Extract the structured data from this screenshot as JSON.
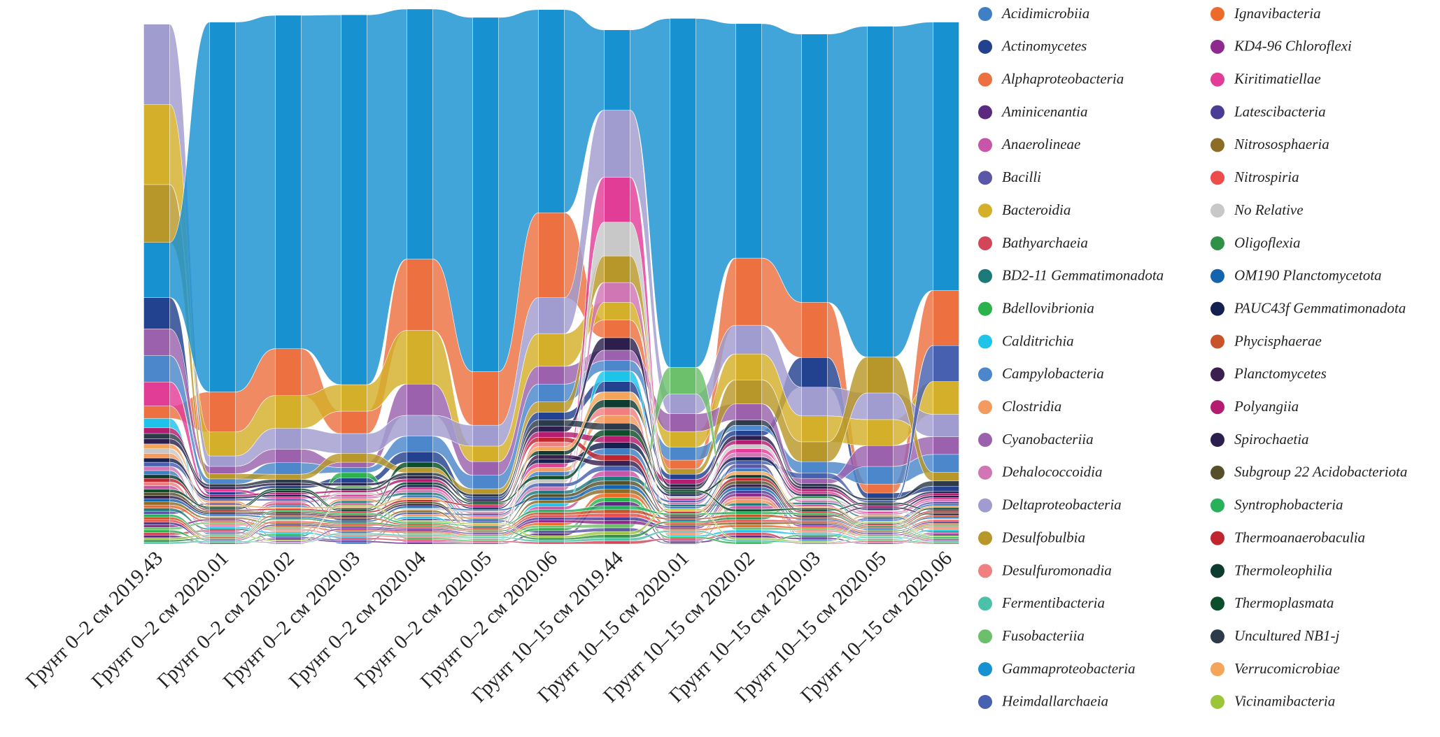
{
  "chart_data": {
    "type": "alluvial",
    "categories": [
      "Грунт 0–2 см 2019.43",
      "Грунт 0–2 см 2020.01",
      "Грунт 0–2 см 2020.02",
      "Грунт 0–2 см 2020.03",
      "Грунт 0–2 см 2020.04",
      "Грунт 0–2 см 2020.05",
      "Грунт 0–2 см 2020.06",
      "Грунт 10–15 см 2019.44",
      "Грунт 10–15 см 2020.01",
      "Грунт 10–15 см 2020.02",
      "Грунт 10–15 см 2020.03",
      "Грунт 10–15 см 2020.05",
      "Грунт 10–15 см 2020.06"
    ],
    "series": [
      {
        "name": "Acidimicrobiia",
        "color": "#3f7fc3",
        "values": [
          0.8,
          0.3,
          0.4,
          0.3,
          0.5,
          0.3,
          0.8,
          1.2,
          0.4,
          0.7,
          0.3,
          0.3,
          0.4
        ]
      },
      {
        "name": "Actinomycetes",
        "color": "#22418f",
        "values": [
          6,
          0.5,
          0.5,
          1,
          2,
          0.5,
          1.5,
          2,
          1,
          1,
          5.7,
          1,
          1
        ]
      },
      {
        "name": "Alphaproteobacteria",
        "color": "#ec7040",
        "values": [
          2.4,
          7.7,
          9,
          4.3,
          13.7,
          10.3,
          16.3,
          3.4,
          1.7,
          12.9,
          10.6,
          1.7,
          10.6
        ]
      },
      {
        "name": "Aminicenantia",
        "color": "#5b2a7e",
        "values": [
          0.5,
          0.2,
          0.3,
          0.3,
          0.3,
          0.2,
          0.5,
          0.8,
          0.3,
          0.5,
          0.3,
          0.2,
          0.3
        ]
      },
      {
        "name": "Anaerolineae",
        "color": "#c855a7",
        "values": [
          0.7,
          0.3,
          0.2,
          0.4,
          0.3,
          0.2,
          0.6,
          1,
          0.3,
          0.6,
          0.4,
          0.2,
          0.3
        ]
      },
      {
        "name": "Bacilli",
        "color": "#5b57a6",
        "values": [
          0.6,
          0.4,
          0.3,
          0.3,
          0.4,
          0.3,
          0.5,
          0.7,
          0.2,
          0.7,
          0.3,
          0.3,
          0.4
        ]
      },
      {
        "name": "Bacteroidia",
        "color": "#d4b02a",
        "values": [
          15.4,
          4.6,
          6.3,
          5.1,
          10.3,
          3,
          6.3,
          3.4,
          3,
          5,
          5,
          5,
          6.3
        ]
      },
      {
        "name": "Bathyarchaeia",
        "color": "#d2465a",
        "values": [
          0.5,
          0.3,
          0.4,
          0.3,
          0.3,
          0.2,
          0.4,
          0.6,
          0.3,
          0.5,
          0.2,
          0.2,
          0.2
        ]
      },
      {
        "name": "BD2-11 Gemmatimonadota",
        "color": "#1d7a7a",
        "values": [
          0.6,
          0.3,
          0.3,
          0.4,
          0.5,
          0.3,
          0.7,
          0.9,
          0.4,
          0.6,
          0.4,
          0.3,
          0.3
        ]
      },
      {
        "name": "Bdellovibrionia",
        "color": "#2bb24c",
        "values": [
          0.5,
          0.2,
          0.3,
          1,
          0.3,
          0.2,
          0.5,
          0.8,
          0.3,
          0.4,
          0.3,
          0.2,
          0.2
        ]
      },
      {
        "name": "Calditrichia",
        "color": "#1ec3ea",
        "values": [
          1.8,
          0.3,
          0.3,
          0.3,
          0.4,
          0.2,
          0.6,
          2,
          0.3,
          0.5,
          0.3,
          0.2,
          0.3
        ]
      },
      {
        "name": "Campylobacteria",
        "color": "#4c86cb",
        "values": [
          5.1,
          1,
          2.2,
          1,
          3,
          2.6,
          3.4,
          2,
          2.5,
          1,
          2.2,
          3.4,
          3.4
        ]
      },
      {
        "name": "Clostridia",
        "color": "#f59a5e",
        "values": [
          0.9,
          0.4,
          0.3,
          0.4,
          0.4,
          0.3,
          0.8,
          1.5,
          0.3,
          0.6,
          0.3,
          0.3,
          0.3
        ]
      },
      {
        "name": "Cyanobacteriia",
        "color": "#9b61ad",
        "values": [
          5.1,
          1.4,
          2.6,
          1,
          6,
          2.6,
          3.4,
          2,
          3.4,
          3.1,
          1,
          4,
          3.4
        ]
      },
      {
        "name": "Dehalococcoidia",
        "color": "#d176b5",
        "values": [
          0.8,
          0.3,
          0.4,
          0.4,
          0.5,
          0.3,
          0.7,
          3.8,
          0.4,
          0.8,
          0.4,
          0.3,
          0.4
        ]
      },
      {
        "name": "Deltaproteobacteria",
        "color": "#a19ccf",
        "values": [
          15.4,
          2,
          4,
          3.8,
          4,
          4,
          6.9,
          12.9,
          3.8,
          5.5,
          5.5,
          5.1,
          4.3
        ]
      },
      {
        "name": "Desulfobulbia",
        "color": "#b8972a",
        "values": [
          11.1,
          1,
          1,
          1.7,
          1,
          1,
          2,
          5.1,
          1,
          4.6,
          3.8,
          6.9,
          1.7
        ]
      },
      {
        "name": "Desulfuromonadia",
        "color": "#f08080",
        "values": [
          0.7,
          0.3,
          0.3,
          0.3,
          0.3,
          0.2,
          0.9,
          1.5,
          0.3,
          0.6,
          0.3,
          0.2,
          0.3
        ]
      },
      {
        "name": "Fermentibacteria",
        "color": "#4dc1a8",
        "values": [
          0.4,
          0.2,
          0.2,
          0.3,
          0.3,
          0.2,
          0.4,
          0.6,
          0.3,
          0.4,
          0.2,
          0.2,
          0.2
        ]
      },
      {
        "name": "Fusobacteriia",
        "color": "#6cbf6b",
        "values": [
          0.5,
          0.3,
          0.3,
          0.5,
          0.3,
          0.2,
          0.5,
          0.7,
          5.1,
          0.5,
          0.3,
          0.2,
          0.3
        ]
      },
      {
        "name": "Gammaproteobacteria",
        "color": "#1891d1",
        "values": [
          10.6,
          71,
          64,
          71,
          48,
          68,
          39,
          15.4,
          67,
          45,
          51.5,
          63.5,
          51.5
        ]
      },
      {
        "name": "Heimdallarchaeia",
        "color": "#4760b0",
        "values": [
          0.8,
          0.4,
          0.4,
          0.3,
          0.4,
          0.3,
          0.7,
          1,
          0.4,
          0.7,
          1,
          0.4,
          6.9
        ]
      },
      {
        "name": "Ignavibacteria",
        "color": "#ec6a2c",
        "values": [
          0.6,
          0.3,
          0.3,
          0.3,
          0.3,
          0.2,
          0.5,
          0.8,
          0.3,
          0.5,
          0.3,
          0.2,
          0.3
        ]
      },
      {
        "name": "KD4-96 Chloroflexi",
        "color": "#8e2a8e",
        "values": [
          0.5,
          0.3,
          0.2,
          0.3,
          0.3,
          0.2,
          0.5,
          0.7,
          0.3,
          0.6,
          0.3,
          0.2,
          0.2
        ]
      },
      {
        "name": "Kiritimatiellae",
        "color": "#e23d96",
        "values": [
          4.6,
          0.5,
          0.4,
          0.4,
          0.5,
          0.3,
          0.8,
          8.6,
          0.4,
          0.8,
          0.5,
          0.3,
          0.4
        ]
      },
      {
        "name": "Latescibacteria",
        "color": "#4a3d96",
        "values": [
          0.5,
          0.2,
          0.3,
          0.3,
          0.3,
          0.2,
          0.5,
          0.7,
          0.3,
          0.6,
          0.3,
          0.2,
          0.3
        ]
      },
      {
        "name": "Nitrososphaeria",
        "color": "#8d6d25",
        "values": [
          0.6,
          0.3,
          0.3,
          0.3,
          0.4,
          0.2,
          0.6,
          0.8,
          0.3,
          0.5,
          0.3,
          0.2,
          0.2
        ]
      },
      {
        "name": "Nitrospiria",
        "color": "#ee4b4b",
        "values": [
          0.5,
          0.2,
          0.3,
          0.3,
          0.3,
          0.2,
          0.5,
          0.7,
          0.3,
          0.5,
          0.3,
          0.2,
          0.3
        ]
      },
      {
        "name": "No Relative",
        "color": "#c8c8c8",
        "values": [
          0.9,
          0.3,
          0.3,
          0.4,
          0.4,
          0.3,
          0.7,
          6.5,
          0.4,
          0.8,
          0.4,
          0.3,
          0.3
        ]
      },
      {
        "name": "Oligoflexia",
        "color": "#2e9145",
        "values": [
          0.4,
          0.2,
          0.3,
          0.3,
          0.3,
          0.2,
          0.4,
          0.6,
          0.3,
          0.5,
          0.4,
          0.2,
          0.2
        ]
      },
      {
        "name": "OM190 Planctomycetota",
        "color": "#1464ad",
        "values": [
          0.6,
          0.3,
          0.3,
          0.3,
          0.4,
          0.3,
          0.6,
          0.8,
          0.3,
          0.6,
          0.3,
          0.2,
          0.3
        ]
      },
      {
        "name": "PAUC43f Gemmatimonadota",
        "color": "#14204f",
        "values": [
          0.8,
          0.4,
          0.4,
          0.3,
          0.5,
          0.3,
          0.8,
          1.2,
          0.4,
          0.7,
          0.4,
          0.3,
          0.4
        ]
      },
      {
        "name": "Phycisphaerae",
        "color": "#c9542a",
        "values": [
          0.5,
          0.2,
          0.3,
          0.3,
          0.3,
          0.2,
          0.5,
          0.7,
          0.3,
          0.5,
          0.3,
          0.2,
          0.3
        ]
      },
      {
        "name": "Planctomycetes",
        "color": "#3b1f4f",
        "values": [
          0.6,
          0.3,
          0.3,
          0.3,
          0.4,
          0.2,
          0.8,
          1,
          0.3,
          0.6,
          0.3,
          0.3,
          0.3
        ]
      },
      {
        "name": "Polyangiia",
        "color": "#b41c70",
        "values": [
          1.1,
          0.4,
          0.4,
          0.4,
          0.6,
          0.3,
          1,
          1.2,
          0.9,
          0.8,
          0.5,
          0.3,
          0.4
        ]
      },
      {
        "name": "Spirochaetia",
        "color": "#2c1e4d",
        "values": [
          1,
          0.5,
          0.5,
          0.5,
          0.6,
          0.4,
          1.1,
          2.4,
          0.6,
          0.9,
          0.5,
          0.3,
          0.4
        ]
      },
      {
        "name": "Subgroup 22 Acidobacteriota",
        "color": "#555029",
        "values": [
          0.6,
          0.3,
          0.3,
          0.3,
          0.4,
          0.2,
          0.6,
          0.8,
          0.3,
          0.6,
          0.3,
          0.2,
          0.3
        ]
      },
      {
        "name": "Syntrophobacteria",
        "color": "#27b15b",
        "values": [
          0.5,
          0.2,
          0.3,
          0.3,
          0.3,
          0.2,
          0.5,
          0.7,
          0.3,
          0.5,
          0.3,
          0.2,
          0.2
        ]
      },
      {
        "name": "Thermoanaerobaculia",
        "color": "#c0262e",
        "values": [
          0.7,
          0.3,
          0.3,
          0.3,
          0.4,
          0.3,
          0.9,
          1.1,
          0.3,
          0.6,
          0.3,
          0.2,
          0.3
        ]
      },
      {
        "name": "Thermoleophilia",
        "color": "#0e3b2f",
        "values": [
          0.7,
          0.3,
          0.4,
          0.3,
          0.5,
          0.3,
          0.8,
          1.5,
          0.4,
          0.6,
          0.3,
          0.3,
          0.3
        ]
      },
      {
        "name": "Thermoplasmata",
        "color": "#0c4e2a",
        "values": [
          0.6,
          0.3,
          0.4,
          0.3,
          1,
          0.3,
          0.7,
          1.2,
          0.4,
          0.5,
          0.3,
          0.2,
          0.3
        ]
      },
      {
        "name": "Uncultured NB1-j",
        "color": "#2d3a4a",
        "values": [
          1,
          0.5,
          0.7,
          0.4,
          0.6,
          0.5,
          1.2,
          1.3,
          0.5,
          1,
          0.5,
          0.4,
          1
        ]
      },
      {
        "name": "Verrucomicrobiae",
        "color": "#f5a55a",
        "values": [
          0.9,
          0.3,
          0.3,
          0.3,
          0.4,
          0.2,
          0.8,
          1.5,
          0.3,
          0.6,
          0.3,
          0.2,
          0.3
        ]
      },
      {
        "name": "Vicinamibacteria",
        "color": "#9cc63a",
        "values": [
          0.4,
          0.2,
          0.2,
          0.3,
          0.3,
          0.2,
          0.4,
          0.6,
          0.3,
          0.4,
          0.2,
          0.2,
          0.2
        ]
      }
    ]
  }
}
